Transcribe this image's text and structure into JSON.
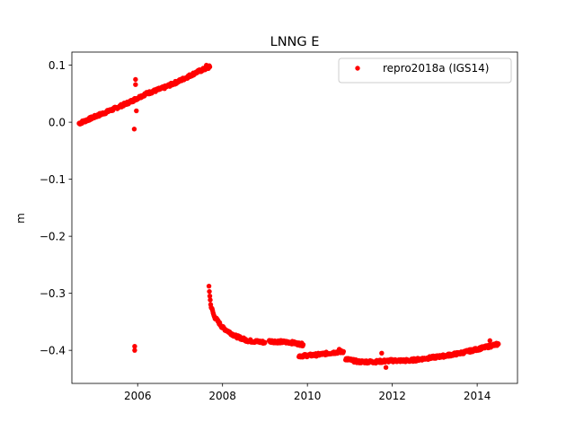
{
  "chart_data": {
    "type": "scatter",
    "title": "LNNG E",
    "xlabel": "",
    "ylabel": "m",
    "xlim": [
      2004.45,
      2014.95
    ],
    "ylim": [
      -0.458,
      0.123
    ],
    "xticks": [
      2006,
      2008,
      2010,
      2012,
      2014
    ],
    "yticks": [
      0.1,
      0.0,
      -0.1,
      -0.2,
      -0.3,
      -0.4
    ],
    "ytick_labels": [
      "0.1",
      "0.0",
      "−0.1",
      "−0.2",
      "−0.3",
      "−0.4"
    ],
    "grid": false,
    "legend_position": "top-right",
    "series": [
      {
        "name": "repro2018a (IGS14)",
        "color": "#ff0000",
        "marker": "o",
        "segments": [
          {
            "x": [
              2004.62,
              2005.0,
              2005.4,
              2005.8,
              2006.2,
              2006.6,
              2007.0,
              2007.4,
              2007.7
            ],
            "y": [
              -0.002,
              0.01,
              0.022,
              0.035,
              0.05,
              0.06,
              0.073,
              0.088,
              0.097
            ]
          },
          {
            "x": [
              2007.68,
              2007.72,
              2007.8,
              2008.0,
              2008.3,
              2008.6,
              2009.0
            ],
            "y": [
              -0.288,
              -0.32,
              -0.34,
              -0.36,
              -0.375,
              -0.383,
              -0.386
            ]
          },
          {
            "x": [
              2009.1,
              2009.6,
              2009.9
            ],
            "y": [
              -0.384,
              -0.386,
              -0.39
            ]
          },
          {
            "x": [
              2009.8,
              2010.2,
              2010.6,
              2010.85
            ],
            "y": [
              -0.41,
              -0.408,
              -0.404,
              -0.402
            ]
          },
          {
            "x": [
              2010.9,
              2011.2,
              2011.6,
              2012.0,
              2012.4,
              2012.8,
              2013.2,
              2013.6,
              2014.0,
              2014.5
            ],
            "y": [
              -0.415,
              -0.42,
              -0.42,
              -0.418,
              -0.418,
              -0.414,
              -0.41,
              -0.405,
              -0.398,
              -0.389
            ]
          }
        ],
        "outliers": [
          {
            "x": 2005.92,
            "y": -0.012
          },
          {
            "x": 2005.95,
            "y": 0.075
          },
          {
            "x": 2005.95,
            "y": 0.066
          },
          {
            "x": 2005.97,
            "y": 0.02
          },
          {
            "x": 2005.93,
            "y": -0.393
          },
          {
            "x": 2005.93,
            "y": -0.4
          },
          {
            "x": 2007.62,
            "y": 0.1
          },
          {
            "x": 2011.85,
            "y": -0.43
          },
          {
            "x": 2011.75,
            "y": -0.405
          },
          {
            "x": 2014.3,
            "y": -0.383
          },
          {
            "x": 2014.25,
            "y": -0.394
          },
          {
            "x": 2010.75,
            "y": -0.398
          }
        ]
      }
    ]
  }
}
